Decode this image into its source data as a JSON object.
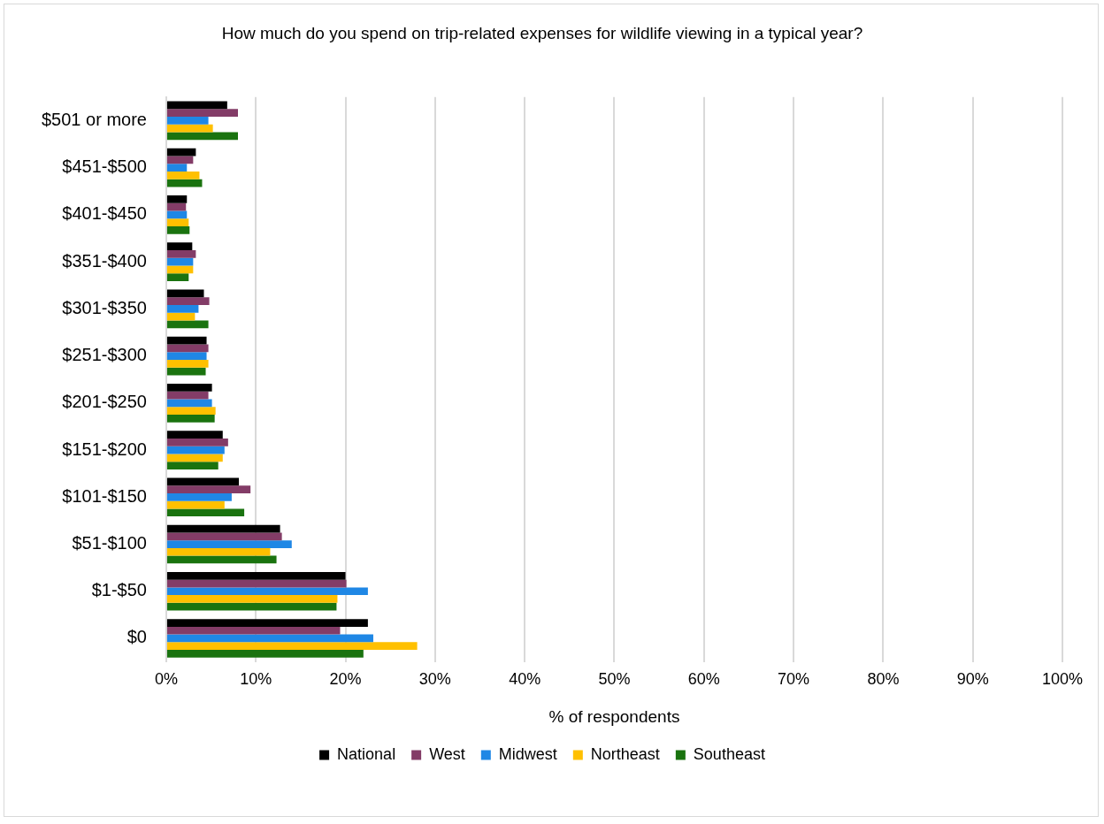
{
  "chart_data": {
    "type": "bar",
    "orientation": "horizontal",
    "title": "How much do you spend on trip-related expenses for wildlife viewing in a typical year?",
    "xlabel": "% of respondents",
    "categories": [
      "$501 or more",
      "$451-$500",
      "$401-$450",
      "$351-$400",
      "$301-$350",
      "$251-$300",
      "$201-$250",
      "$151-$200",
      "$101-$150",
      "$51-$100",
      "$1-$50",
      "$0"
    ],
    "series": [
      {
        "name": "National",
        "color": "#000000",
        "values": [
          6.8,
          3.3,
          2.3,
          2.9,
          4.2,
          4.5,
          5.1,
          6.3,
          8.1,
          12.7,
          20.0,
          22.5
        ]
      },
      {
        "name": "West",
        "color": "#833c67",
        "values": [
          8.0,
          3.0,
          2.2,
          3.3,
          4.8,
          4.7,
          4.7,
          6.9,
          9.4,
          12.9,
          20.1,
          19.4
        ]
      },
      {
        "name": "Midwest",
        "color": "#1f87e5",
        "values": [
          4.7,
          2.3,
          2.3,
          3.0,
          3.6,
          4.5,
          5.1,
          6.5,
          7.3,
          14.0,
          22.5,
          23.1
        ]
      },
      {
        "name": "Northeast",
        "color": "#ffc000",
        "values": [
          5.2,
          3.7,
          2.5,
          3.0,
          3.2,
          4.7,
          5.5,
          6.3,
          6.5,
          11.6,
          19.1,
          28.0
        ]
      },
      {
        "name": "Southeast",
        "color": "#1a730f",
        "values": [
          8.0,
          4.0,
          2.6,
          2.5,
          4.7,
          4.4,
          5.4,
          5.8,
          8.7,
          12.3,
          19.0,
          22.0
        ]
      }
    ],
    "xlim": [
      0,
      100
    ],
    "xticks": [
      {
        "value": 0,
        "label": "0%"
      },
      {
        "value": 10,
        "label": "10%"
      },
      {
        "value": 20,
        "label": "20%"
      },
      {
        "value": 30,
        "label": "30%"
      },
      {
        "value": 40,
        "label": "40%"
      },
      {
        "value": 50,
        "label": "50%"
      },
      {
        "value": 60,
        "label": "60%"
      },
      {
        "value": 70,
        "label": "70%"
      },
      {
        "value": 80,
        "label": "80%"
      },
      {
        "value": 90,
        "label": "90%"
      },
      {
        "value": 100,
        "label": "100%"
      }
    ],
    "grid": "x",
    "legend": "bottom"
  }
}
